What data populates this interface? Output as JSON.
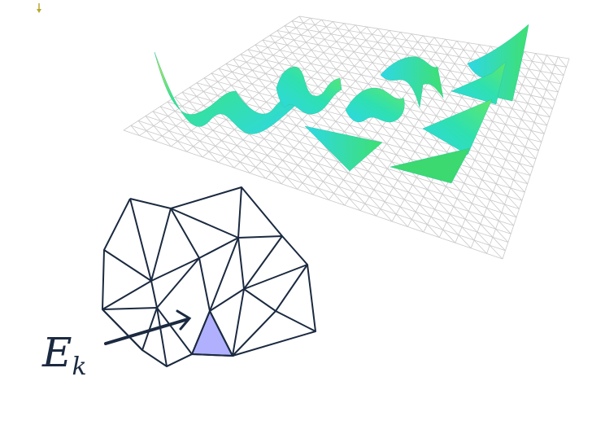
{
  "figure": {
    "element_label": {
      "main": "E",
      "sub": "k"
    },
    "colors": {
      "grid": "#c9c9c9",
      "mesh_edges": "#1b2a40",
      "highlight_fill": "#b0b0ff",
      "surface_low": "#2ed8e6",
      "surface_mid": "#37e38a",
      "surface_high": "#e8e23a"
    }
  }
}
